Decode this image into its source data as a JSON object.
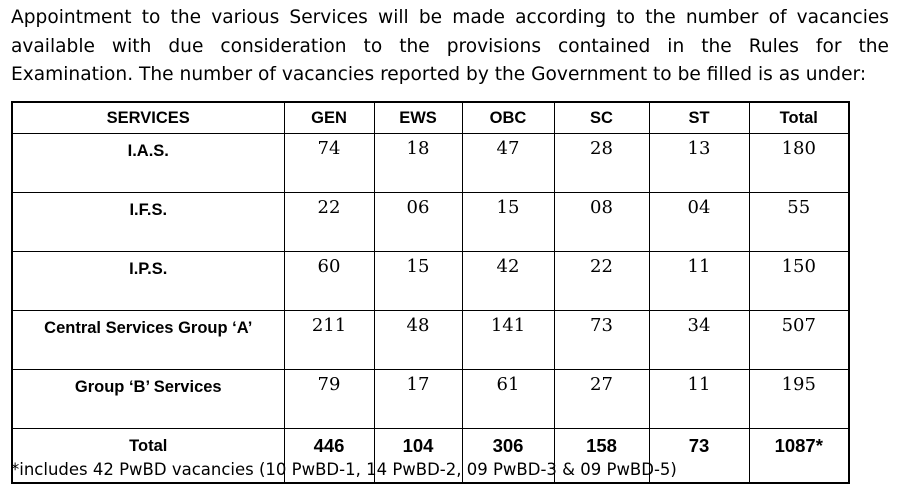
{
  "paragraph_lines": [
    "Appointment to the various Services will be made according to the number of vacancies",
    "available with due consideration to the provisions contained in the Rules for the",
    "Examination. The number of vacancies reported by the Government to be filled is as under:"
  ],
  "table": {
    "header": [
      "SERVICES",
      "GEN",
      "EWS",
      "OBC",
      "SC",
      "ST",
      "Total"
    ],
    "rows": [
      [
        "I.A.S.",
        "74",
        "18",
        "47",
        "28",
        "13",
        "180"
      ],
      [
        "I.F.S.",
        "22",
        "06",
        "15",
        "08",
        "04",
        "55"
      ],
      [
        "I.P.S.",
        "60",
        "15",
        "42",
        "22",
        "11",
        "150"
      ],
      [
        "Central Services Group ‘A’",
        "211",
        "48",
        "141",
        "73",
        "34",
        "507"
      ],
      [
        "Group ‘B’ Services",
        "79",
        "17",
        "61",
        "27",
        "11",
        "195"
      ],
      [
        "Total",
        "446",
        "104",
        "306",
        "158",
        "73",
        "1087*"
      ]
    ]
  },
  "footnote": "*includes 42 PwBD vacancies (10 PwBD-1, 14 PwBD-2, 09 PwBD-3 & 09 PwBD-5)"
}
